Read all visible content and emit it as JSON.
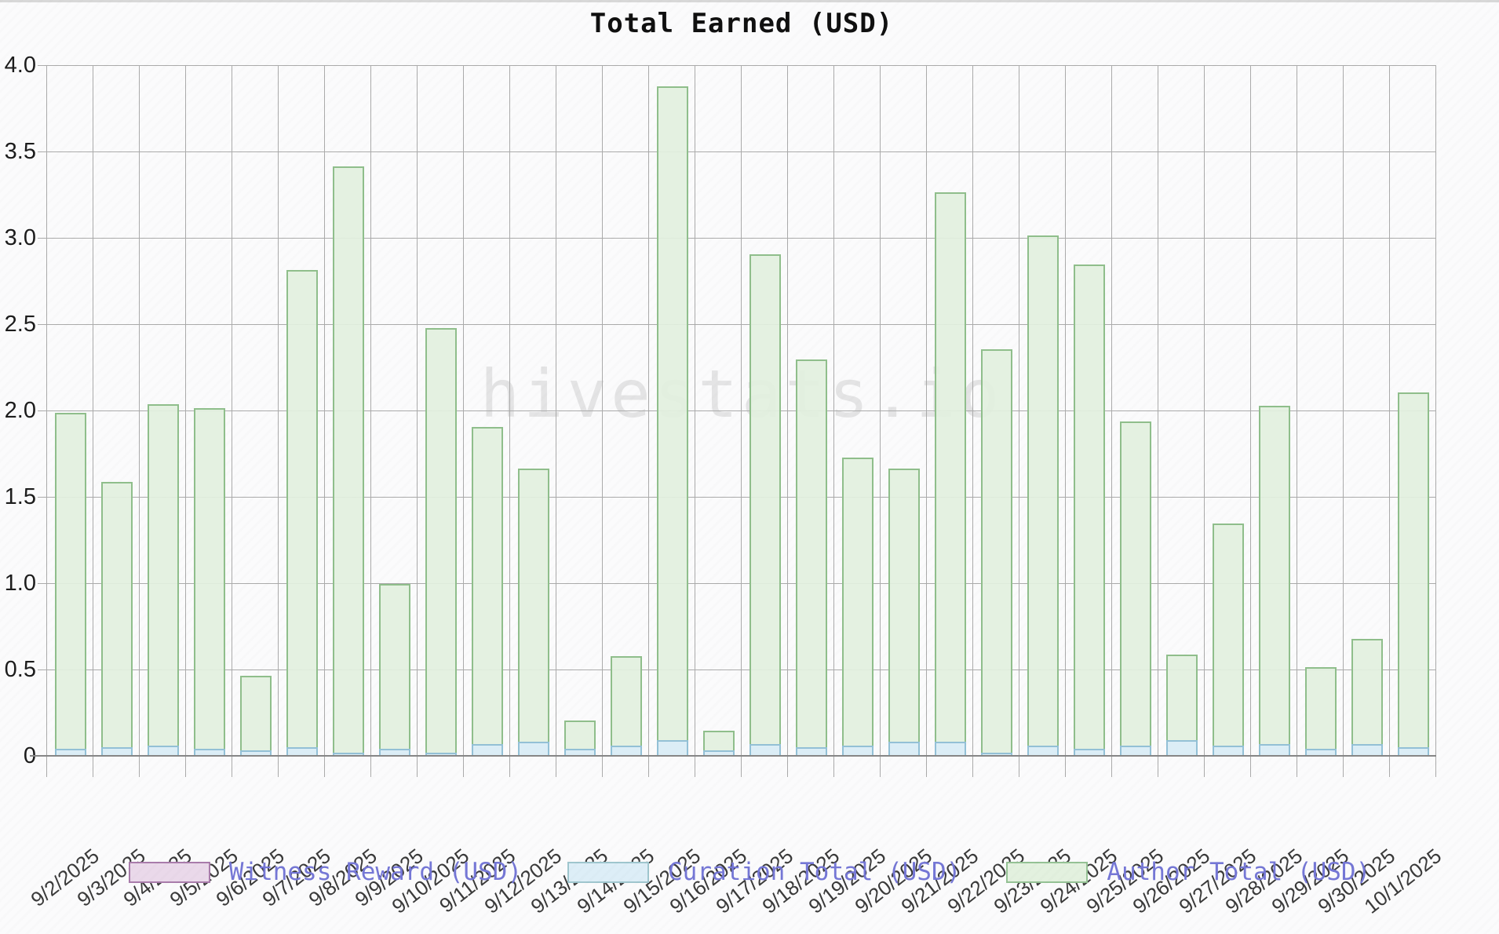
{
  "title": "Total Earned (USD)",
  "watermark": "hivestats.io",
  "colors": {
    "author_fill": "#e2f0de",
    "author_border": "#8fbe8b",
    "curation_fill": "#d9ecf6",
    "curation_border": "#93c0d6",
    "witness_fill": "#ead9ea",
    "witness_border": "#a97cab",
    "legend_text": "#7577d6",
    "gridline": "#ababab",
    "axis_line": "#868686",
    "title_text": "#101010"
  },
  "legend": [
    {
      "label": "Witness Reward (USD)"
    },
    {
      "label": "Curation Total (USD)"
    },
    {
      "label": "Author Total (USD)"
    }
  ],
  "chart_data": {
    "type": "bar",
    "stacked": true,
    "title": "Total Earned (USD)",
    "xlabel": "",
    "ylabel": "",
    "ylim": [
      0,
      4
    ],
    "ytick_labels": [
      "4.0",
      "3.5",
      "3.0",
      "2.5",
      "2.0",
      "1.5",
      "1.0",
      "0.5",
      "0"
    ],
    "grid": true,
    "legend_position": "bottom",
    "categories": [
      "9/2/2025",
      "9/3/2025",
      "9/4/2025",
      "9/5/2025",
      "9/6/2025",
      "9/7/2025",
      "9/8/2025",
      "9/9/2025",
      "9/10/2025",
      "9/11/2025",
      "9/12/2025",
      "9/13/2025",
      "9/14/2025",
      "9/15/2025",
      "9/16/2025",
      "9/17/2025",
      "9/18/2025",
      "9/19/2025",
      "9/20/2025",
      "9/21/2025",
      "9/22/2025",
      "9/23/2025",
      "9/24/2025",
      "9/25/2025",
      "9/26/2025",
      "9/27/2025",
      "9/28/2025",
      "9/29/2025",
      "9/30/2025",
      "10/1/2025"
    ],
    "series": [
      {
        "name": "Witness Reward (USD)",
        "values": [
          0,
          0,
          0,
          0,
          0,
          0,
          0,
          0,
          0,
          0,
          0,
          0,
          0,
          0,
          0,
          0,
          0,
          0,
          0,
          0,
          0,
          0,
          0,
          0,
          0,
          0,
          0,
          0,
          0,
          0
        ]
      },
      {
        "name": "Curation Total (USD)",
        "values": [
          0.04,
          0.05,
          0.06,
          0.04,
          0.03,
          0.05,
          0.02,
          0.04,
          0.02,
          0.07,
          0.08,
          0.04,
          0.06,
          0.09,
          0.03,
          0.07,
          0.05,
          0.06,
          0.08,
          0.08,
          0.02,
          0.06,
          0.04,
          0.06,
          0.09,
          0.06,
          0.07,
          0.04,
          0.07,
          0.05
        ]
      },
      {
        "name": "Author Total (USD)",
        "values": [
          1.95,
          1.54,
          1.98,
          1.98,
          0.44,
          2.77,
          3.4,
          0.96,
          2.46,
          1.84,
          1.59,
          0.17,
          0.52,
          3.79,
          0.12,
          2.84,
          2.25,
          1.67,
          1.59,
          3.19,
          2.34,
          2.96,
          2.81,
          1.88,
          0.5,
          1.29,
          1.96,
          0.48,
          0.61,
          2.06
        ]
      }
    ],
    "totals": [
      1.99,
      1.59,
      2.04,
      2.02,
      0.47,
      2.82,
      3.42,
      1.0,
      2.48,
      1.91,
      1.67,
      0.21,
      0.58,
      3.88,
      0.15,
      2.91,
      2.3,
      1.73,
      1.67,
      3.27,
      2.36,
      3.02,
      2.85,
      1.94,
      0.59,
      1.35,
      2.03,
      0.52,
      0.68,
      2.11
    ]
  }
}
